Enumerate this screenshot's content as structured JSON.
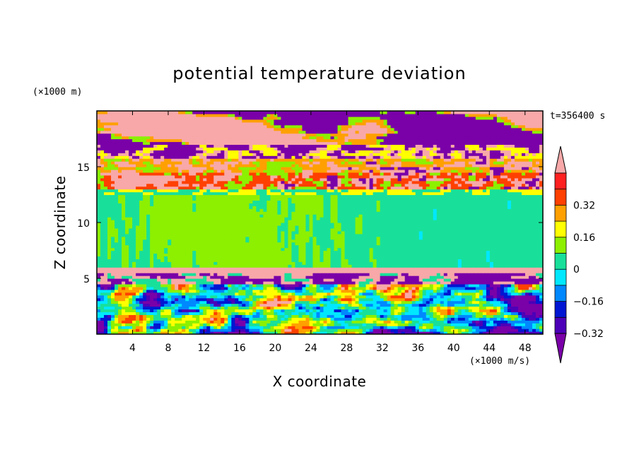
{
  "chart_data": {
    "type": "heatmap",
    "title": "potential temperature deviation",
    "xlabel": "X coordinate",
    "ylabel": "Z coordinate",
    "x_units": "(×1000 m/s)",
    "y_units": "(×1000 m)",
    "time_label": "t=356400 s",
    "xlim": [
      0,
      50
    ],
    "ylim": [
      0,
      20
    ],
    "x_ticks": [
      4,
      8,
      12,
      16,
      20,
      24,
      28,
      32,
      36,
      40,
      44,
      48
    ],
    "y_ticks": [
      5,
      10,
      15
    ],
    "colorbar": {
      "levels": [
        -0.4,
        -0.32,
        -0.24,
        -0.16,
        -0.08,
        0,
        0.08,
        0.16,
        0.24,
        0.32,
        0.4
      ],
      "tick_labels": [
        "−0.32",
        "−0.16",
        "0",
        "0.16",
        "0.32"
      ],
      "tick_values": [
        -0.32,
        -0.16,
        0,
        0.16,
        0.32
      ],
      "colors": [
        "#7a00a8",
        "#4c00b8",
        "#0016d2",
        "#0088ff",
        "#00e8ff",
        "#18e09a",
        "#8cf000",
        "#ffff00",
        "#ffa000",
        "#ff4000",
        "#ff2020",
        "#f8a8a8"
      ],
      "extend": "both"
    },
    "bands": [
      {
        "z_min": 17.0,
        "z_max": 20.0,
        "pattern": "mixed-purple-pink"
      },
      {
        "z_min": 12.5,
        "z_max": 17.0,
        "pattern": "turbulent"
      },
      {
        "z_min": 6.0,
        "z_max": 12.5,
        "pattern": "near-zero"
      },
      {
        "z_min": 4.5,
        "z_max": 6.0,
        "pattern": "pink-purple-layer"
      },
      {
        "z_min": 0,
        "z_max": 4.5,
        "pattern": "mixed-blobs"
      }
    ]
  }
}
